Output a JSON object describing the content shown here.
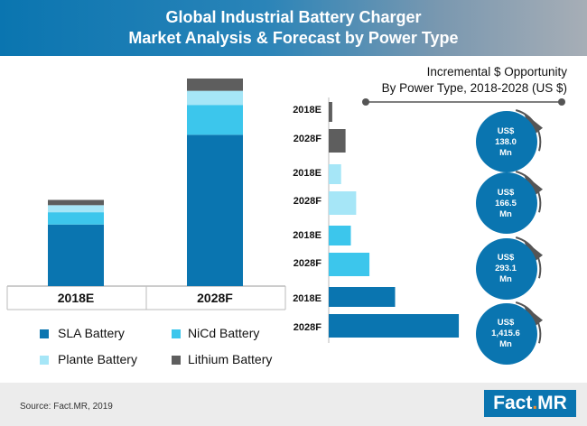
{
  "header": {
    "title_line1": "Global Industrial Battery Charger",
    "title_line2": "Market Analysis & Forecast by Power Type"
  },
  "opportunity": {
    "title_line1": "Incremental $ Opportunity",
    "title_line2": "By Power Type, 2018-2028 (US $)"
  },
  "colors": {
    "SLA Battery": "#0a75b0",
    "NiCd Battery": "#3cc6ec",
    "Plante Battery": "#a6e6f7",
    "Lithium Battery": "#5e5e5e"
  },
  "chart_data": [
    {
      "type": "bar",
      "stacked": true,
      "title": "",
      "categories": [
        "2018E",
        "2028F"
      ],
      "series": [
        {
          "name": "SLA Battery",
          "values": [
            35,
            86
          ]
        },
        {
          "name": "NiCd Battery",
          "values": [
            7,
            17
          ]
        },
        {
          "name": "Plante Battery",
          "values": [
            4,
            8
          ]
        },
        {
          "name": "Lithium Battery",
          "values": [
            3,
            7
          ]
        }
      ],
      "ylim": [
        0,
        118
      ],
      "legend": [
        "SLA Battery",
        "NiCd Battery",
        "Plante Battery",
        "Lithium Battery"
      ]
    },
    {
      "type": "bar",
      "orientation": "horizontal",
      "groups": [
        {
          "name": "Lithium Battery",
          "bars": [
            {
              "label": "2018E",
              "value": 4
            },
            {
              "label": "2028F",
              "value": 19
            }
          ],
          "opportunity": [
            "US$",
            "138.0",
            "Mn"
          ]
        },
        {
          "name": "Plante Battery",
          "bars": [
            {
              "label": "2018E",
              "value": 14
            },
            {
              "label": "2028F",
              "value": 31
            }
          ],
          "opportunity": [
            "US$",
            "166.5",
            "Mn"
          ]
        },
        {
          "name": "NiCd Battery",
          "bars": [
            {
              "label": "2018E",
              "value": 25
            },
            {
              "label": "2028F",
              "value": 46
            }
          ],
          "opportunity": [
            "US$",
            "293.1",
            "Mn"
          ]
        },
        {
          "name": "SLA Battery",
          "bars": [
            {
              "label": "2018E",
              "value": 75
            },
            {
              "label": "2028F",
              "value": 147
            }
          ],
          "opportunity": [
            "US$",
            "1,415.6",
            "Mn"
          ]
        }
      ],
      "xlim": [
        0,
        150
      ]
    }
  ],
  "footer": {
    "source": "Source: Fact.MR, 2019",
    "logo_part1": "Fact",
    "logo_dot": ".",
    "logo_part2": "MR"
  }
}
